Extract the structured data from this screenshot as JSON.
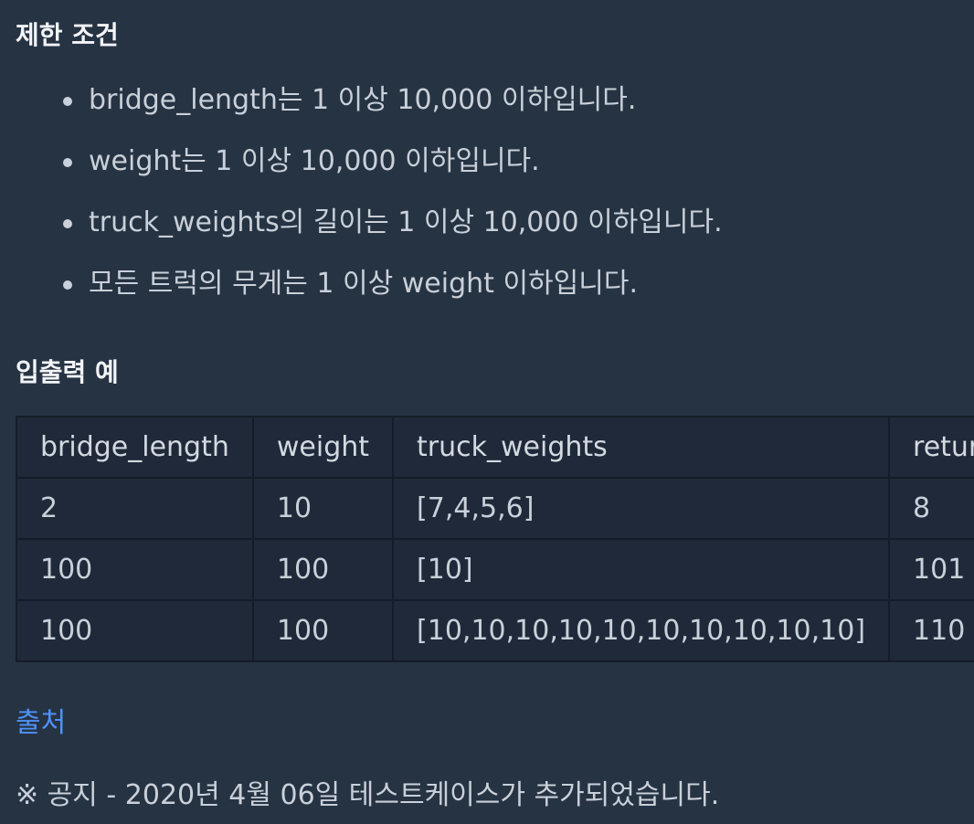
{
  "constraints": {
    "title": "제한 조건",
    "items": [
      "bridge_length는 1 이상 10,000 이하입니다.",
      "weight는 1 이상 10,000 이하입니다.",
      "truck_weights의 길이는 1 이상 10,000 이하입니다.",
      "모든 트럭의 무게는 1 이상 weight 이하입니다."
    ]
  },
  "examples": {
    "title": "입출력 예",
    "headers": [
      "bridge_length",
      "weight",
      "truck_weights",
      "return"
    ],
    "rows": [
      [
        "2",
        "10",
        "[7,4,5,6]",
        "8"
      ],
      [
        "100",
        "100",
        "[10]",
        "101"
      ],
      [
        "100",
        "100",
        "[10,10,10,10,10,10,10,10,10,10]",
        "110"
      ]
    ]
  },
  "source": {
    "label": "출처"
  },
  "notice": {
    "text": "※ 공지 - 2020년 4월 06일 테스트케이스가 추가되었습니다."
  },
  "colors": {
    "background": "#263343",
    "table_background": "#1f293a",
    "link": "#4e92f9",
    "text": "#c9d0d9"
  }
}
